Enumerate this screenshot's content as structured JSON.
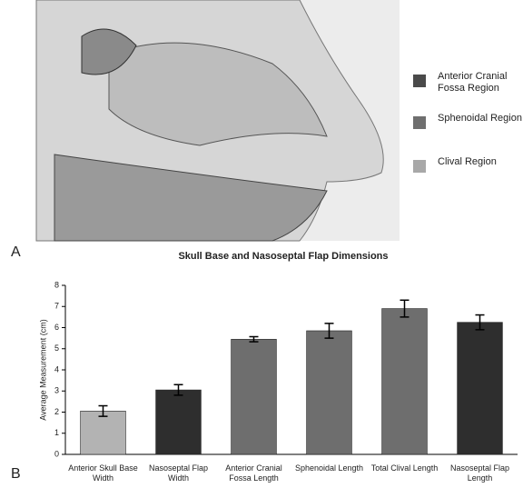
{
  "panel_labels": [
    "A",
    "B"
  ],
  "illustration_legend": [
    {
      "label": "Anterior Cranial Fossa Region",
      "color": "#4a4a4a"
    },
    {
      "label": "Sphenoidal Region",
      "color": "#6f6f6f"
    },
    {
      "label": "Clival Region",
      "color": "#a8a8a8"
    }
  ],
  "chart_data": {
    "type": "bar",
    "title": "Skull Base and Nasoseptal Flap Dimensions",
    "y_label": "Average Measurement (cm)",
    "categories": [
      "Anterior Skull Base Width",
      "Nasoseptal Flap Width",
      "Anterior Cranial Fossa Length",
      "Sphenoidal Length",
      "Total Clival Length",
      "Nasoseptal Flap Length"
    ],
    "values": [
      2.05,
      3.05,
      5.45,
      5.85,
      6.9,
      6.25
    ],
    "errors": [
      0.25,
      0.25,
      0.12,
      0.35,
      0.4,
      0.35
    ],
    "colors": [
      "#b3b3b3",
      "#2e2e2e",
      "#6e6e6e",
      "#6e6e6e",
      "#6e6e6e",
      "#2e2e2e"
    ],
    "ylim": [
      0,
      8
    ],
    "yticks": [
      0,
      1,
      2,
      3,
      4,
      5,
      6,
      7,
      8
    ]
  }
}
